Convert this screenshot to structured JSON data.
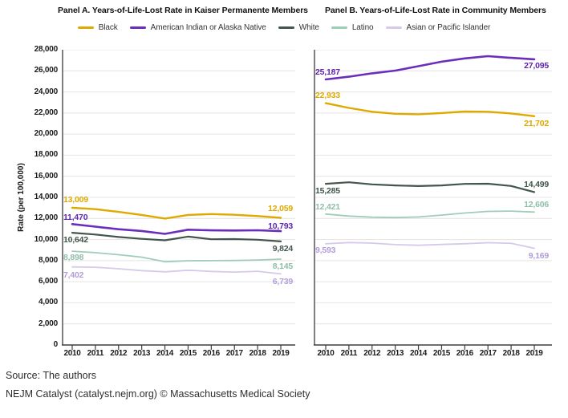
{
  "figure": {
    "panel_a_title": "Panel A. Years-of-Life-Lost Rate in Kaiser Permanente Members",
    "panel_b_title": "Panel B. Years-of-Life-Lost Rate in Community Members",
    "y_axis_title": "Rate (per 100,000)",
    "source_line": "Source: The authors",
    "credit_line": "NEJM Catalyst (catalyst.nejm.org) © Massachusetts Medical Society"
  },
  "legend": [
    {
      "label": "Black",
      "color": "#DFA900"
    },
    {
      "label": "American Indian or Alaska Native",
      "color": "#6A2EBB"
    },
    {
      "label": "White",
      "color": "#43564B"
    },
    {
      "label": "Latino",
      "color": "#A0CDB8"
    },
    {
      "label": "Asian or Pacific Islander",
      "color": "#D6C9E9"
    }
  ],
  "chart_data": [
    {
      "type": "line",
      "title": "Panel A. Years-of-Life-Lost Rate in Kaiser Permanente Members",
      "xlabel": "",
      "ylabel": "Rate (per 100,000)",
      "ylim": [
        0,
        28000
      ],
      "ytick_step": 2000,
      "grid": true,
      "x": [
        2010,
        2011,
        2012,
        2013,
        2014,
        2015,
        2016,
        2017,
        2018,
        2019
      ],
      "series": [
        {
          "name": "Black",
          "color": "#DFA900",
          "label_color": "#DFA900",
          "values": [
            13009,
            12880,
            12620,
            12330,
            11990,
            12330,
            12420,
            12350,
            12230,
            12059
          ],
          "first_label": "13,009",
          "last_label": "12,059"
        },
        {
          "name": "American Indian or Alaska Native",
          "color": "#6A2EBB",
          "label_color": "#5F25AE",
          "values": [
            11470,
            11220,
            10980,
            10810,
            10540,
            10930,
            10870,
            10860,
            10880,
            10793
          ],
          "first_label": "11,470",
          "last_label": "10,793"
        },
        {
          "name": "White",
          "color": "#43564B",
          "label_color": "#43564B",
          "values": [
            10642,
            10480,
            10240,
            10070,
            9930,
            10280,
            10030,
            10040,
            9980,
            9824
          ],
          "first_label": "10,642",
          "last_label": "9,824"
        },
        {
          "name": "Latino",
          "color": "#A0CDB8",
          "label_color": "#8FBFA8",
          "values": [
            8898,
            8760,
            8560,
            8330,
            7890,
            7990,
            8000,
            8010,
            8060,
            8145
          ],
          "first_label": "8,898",
          "last_label": "8,145"
        },
        {
          "name": "Asian or Pacific Islander",
          "color": "#D6C9E9",
          "label_color": "#B39DD8",
          "values": [
            7402,
            7370,
            7230,
            7050,
            6940,
            7090,
            6980,
            6920,
            6990,
            6739
          ],
          "first_label": "7,402",
          "last_label": "6,739"
        }
      ]
    },
    {
      "type": "line",
      "title": "Panel B. Years-of-Life-Lost Rate in Community Members",
      "xlabel": "",
      "ylabel": "Rate (per 100,000)",
      "ylim": [
        0,
        28000
      ],
      "ytick_step": 2000,
      "grid": true,
      "x": [
        2010,
        2011,
        2012,
        2013,
        2014,
        2015,
        2016,
        2017,
        2018,
        2019
      ],
      "series": [
        {
          "name": "Black",
          "color": "#DFA900",
          "label_color": "#DFA900",
          "values": [
            22933,
            22480,
            22120,
            21930,
            21880,
            22000,
            22140,
            22120,
            21960,
            21702
          ],
          "first_label": "22,933",
          "last_label": "21,702"
        },
        {
          "name": "American Indian or Alaska Native",
          "color": "#6A2EBB",
          "label_color": "#5F25AE",
          "values": [
            25187,
            25440,
            25760,
            26020,
            26440,
            26870,
            27180,
            27390,
            27230,
            27095
          ],
          "first_label": "25,187",
          "last_label": "27,095"
        },
        {
          "name": "White",
          "color": "#43564B",
          "label_color": "#43564B",
          "values": [
            15285,
            15430,
            15230,
            15130,
            15070,
            15130,
            15280,
            15290,
            15080,
            14499
          ],
          "first_label": "15,285",
          "last_label": "14,499"
        },
        {
          "name": "Latino",
          "color": "#A0CDB8",
          "label_color": "#8FBFA8",
          "values": [
            12421,
            12230,
            12120,
            12080,
            12140,
            12320,
            12520,
            12670,
            12700,
            12606
          ],
          "first_label": "12,421",
          "last_label": "12,606"
        },
        {
          "name": "Asian or Pacific Islander",
          "color": "#D6C9E9",
          "label_color": "#B39DD8",
          "values": [
            9593,
            9720,
            9660,
            9520,
            9460,
            9530,
            9600,
            9700,
            9640,
            9169
          ],
          "first_label": "9,593",
          "last_label": "9,169"
        }
      ]
    }
  ]
}
